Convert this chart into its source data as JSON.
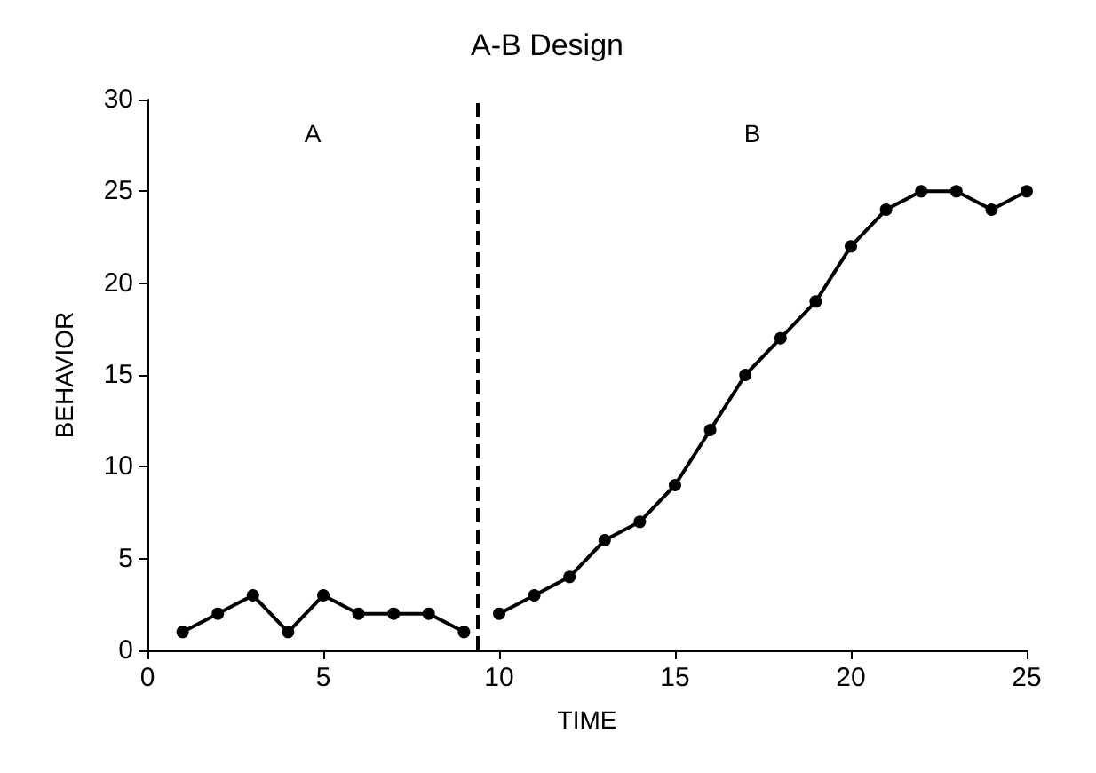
{
  "chart_data": {
    "type": "line",
    "title": "A-B Design",
    "xlabel": "TIME",
    "ylabel": "BEHAVIOR",
    "series": [
      {
        "color": "#000000",
        "x": [
          1,
          2,
          3,
          4,
          5,
          6,
          7,
          8,
          9
        ],
        "values": [
          1,
          2,
          3,
          1,
          3,
          2,
          2,
          2,
          1
        ]
      },
      {
        "color": "#000000",
        "x": [
          10,
          11,
          12,
          13,
          14,
          15,
          16,
          17,
          18,
          19,
          20,
          21,
          22,
          23,
          24,
          25
        ],
        "values": [
          2,
          3,
          4,
          6,
          7,
          9,
          12,
          15,
          17,
          19,
          22,
          24,
          25,
          25,
          24,
          25
        ]
      }
    ],
    "xlim": [
      0,
      25
    ],
    "xticks": [
      0,
      5,
      10,
      15,
      20,
      25
    ],
    "ylim": [
      0,
      30
    ],
    "yticks": [
      0,
      5,
      10,
      15,
      20,
      25,
      30
    ],
    "ref_lines": [
      {
        "axis": "x",
        "value": 9.4,
        "color": "#000000",
        "line_style": "dashed"
      }
    ],
    "annotations": [
      "A",
      "B"
    ],
    "marker": "circle",
    "line_style": "solid",
    "grid": false
  }
}
